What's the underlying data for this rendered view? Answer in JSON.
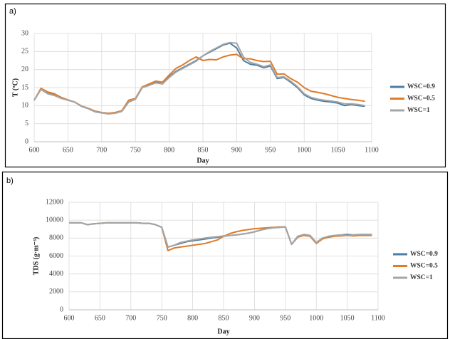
{
  "chart_data": [
    {
      "type": "line",
      "label": "a)",
      "xlabel": "Day",
      "ylabel": "T (ºC)",
      "xlim": [
        600,
        1100
      ],
      "xticks": [
        600,
        650,
        700,
        750,
        800,
        850,
        900,
        950,
        1000,
        1050,
        1100
      ],
      "ylim": [
        0,
        30
      ],
      "yticks": [
        0,
        5,
        10,
        15,
        20,
        25,
        30
      ],
      "grid": true,
      "x": [
        600,
        610,
        620,
        630,
        640,
        650,
        660,
        670,
        680,
        690,
        700,
        710,
        720,
        730,
        740,
        750,
        760,
        770,
        780,
        790,
        800,
        810,
        820,
        830,
        840,
        850,
        860,
        870,
        880,
        890,
        900,
        910,
        920,
        930,
        940,
        950,
        960,
        970,
        980,
        990,
        1000,
        1010,
        1020,
        1030,
        1040,
        1050,
        1060,
        1070,
        1080,
        1090
      ],
      "series": [
        {
          "name": "WSC=0.9",
          "color": "#4a7ea6",
          "values": [
            11.5,
            14.5,
            13.5,
            13.0,
            12.2,
            11.5,
            11.0,
            9.8,
            9.2,
            8.3,
            8.0,
            7.8,
            8.0,
            8.5,
            11.0,
            11.8,
            15.0,
            15.8,
            16.5,
            16.0,
            18.0,
            19.5,
            20.5,
            21.5,
            22.5,
            23.8,
            24.8,
            25.8,
            26.8,
            27.3,
            26.0,
            22.5,
            21.5,
            21.2,
            20.5,
            21.0,
            17.5,
            17.8,
            16.5,
            15.0,
            13.0,
            12.0,
            11.5,
            11.2,
            11.0,
            10.7,
            10.0,
            10.3,
            10.0,
            9.8
          ]
        },
        {
          "name": "WSC=0.5",
          "color": "#e07b28",
          "values": [
            11.5,
            14.8,
            13.8,
            13.3,
            12.3,
            11.6,
            11.0,
            9.9,
            9.3,
            8.5,
            8.1,
            7.9,
            8.1,
            8.6,
            11.5,
            12.0,
            15.2,
            16.0,
            16.8,
            16.5,
            18.5,
            20.3,
            21.3,
            22.5,
            23.5,
            22.5,
            22.8,
            22.7,
            23.5,
            24.0,
            24.2,
            23.0,
            23.0,
            22.5,
            22.2,
            22.3,
            18.7,
            18.8,
            17.5,
            16.5,
            15.0,
            14.0,
            13.7,
            13.3,
            12.8,
            12.3,
            12.0,
            11.7,
            11.5,
            11.2
          ]
        },
        {
          "name": "WSC=1",
          "color": "#a5a5a5",
          "values": [
            11.5,
            14.5,
            13.3,
            12.8,
            12.0,
            11.5,
            11.0,
            9.8,
            9.2,
            8.3,
            8.0,
            7.7,
            7.9,
            8.4,
            11.0,
            11.8,
            15.0,
            15.6,
            16.3,
            16.0,
            17.8,
            19.3,
            20.3,
            21.3,
            22.3,
            23.8,
            25.0,
            26.0,
            27.0,
            27.5,
            27.3,
            23.5,
            22.0,
            21.5,
            20.8,
            21.3,
            17.8,
            18.0,
            16.8,
            15.3,
            13.3,
            12.3,
            11.8,
            11.5,
            11.3,
            11.0,
            10.5,
            10.5,
            10.3,
            10.0
          ]
        }
      ]
    },
    {
      "type": "line",
      "label": "b)",
      "xlabel": "Day",
      "ylabel": "TDS (g·m⁻³)",
      "xlim": [
        600,
        1100
      ],
      "xticks": [
        600,
        650,
        700,
        750,
        800,
        850,
        900,
        950,
        1000,
        1050,
        1100
      ],
      "ylim": [
        0,
        12000
      ],
      "yticks": [
        0,
        2000,
        4000,
        6000,
        8000,
        10000,
        12000
      ],
      "grid": true,
      "x": [
        600,
        610,
        620,
        630,
        640,
        650,
        660,
        670,
        680,
        690,
        700,
        710,
        720,
        730,
        740,
        750,
        760,
        770,
        780,
        790,
        800,
        810,
        820,
        830,
        840,
        850,
        860,
        870,
        880,
        890,
        900,
        910,
        920,
        930,
        940,
        950,
        960,
        970,
        980,
        990,
        1000,
        1010,
        1020,
        1030,
        1040,
        1050,
        1060,
        1070,
        1080,
        1090
      ],
      "series": [
        {
          "name": "WSC=0.9",
          "color": "#4a7ea6",
          "values": [
            9700,
            9700,
            9700,
            9500,
            9600,
            9650,
            9700,
            9700,
            9700,
            9700,
            9700,
            9700,
            9650,
            9650,
            9500,
            9200,
            7000,
            7200,
            7400,
            7600,
            7700,
            7800,
            7900,
            8000,
            8100,
            8200,
            8300,
            8350,
            8450,
            8550,
            8700,
            8900,
            9050,
            9150,
            9200,
            9250,
            7300,
            8200,
            8400,
            8300,
            7500,
            8000,
            8200,
            8300,
            8350,
            8400,
            8350,
            8400,
            8400,
            8400
          ]
        },
        {
          "name": "WSC=0.5",
          "color": "#e07b28",
          "values": [
            9700,
            9700,
            9700,
            9500,
            9600,
            9650,
            9700,
            9700,
            9700,
            9700,
            9700,
            9700,
            9650,
            9650,
            9500,
            9200,
            6600,
            6900,
            7000,
            7100,
            7200,
            7300,
            7400,
            7600,
            7800,
            8200,
            8500,
            8700,
            8850,
            8950,
            9050,
            9100,
            9150,
            9200,
            9250,
            9250,
            7300,
            8100,
            8300,
            8200,
            7400,
            7900,
            8100,
            8200,
            8250,
            8300,
            8250,
            8300,
            8300,
            8300
          ]
        },
        {
          "name": "WSC=1",
          "color": "#a5a5a5",
          "values": [
            9700,
            9700,
            9700,
            9500,
            9600,
            9650,
            9700,
            9700,
            9700,
            9700,
            9700,
            9700,
            9650,
            9650,
            9500,
            9200,
            7000,
            7200,
            7500,
            7650,
            7800,
            7900,
            8000,
            8100,
            8150,
            8250,
            8300,
            8350,
            8450,
            8550,
            8700,
            8900,
            9050,
            9150,
            9200,
            9250,
            7300,
            8200,
            8400,
            8300,
            7500,
            8000,
            8200,
            8300,
            8350,
            8300,
            8350,
            8400,
            8400,
            8400
          ]
        }
      ]
    }
  ]
}
